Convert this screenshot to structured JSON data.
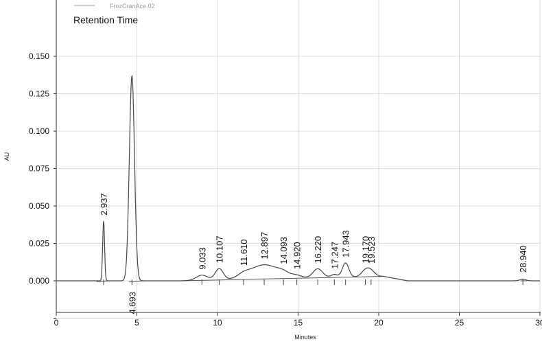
{
  "chart_data": {
    "type": "line",
    "title": "Retention Time",
    "legend_entry": "FrozCranAce.02",
    "legend_position": "top-left",
    "xlabel": "Minutes",
    "ylabel": "AU",
    "xlim": [
      0,
      30
    ],
    "ylim": [
      -0.025,
      0.15
    ],
    "x_ticks": [
      {
        "value": 0,
        "label": "0"
      },
      {
        "value": 5,
        "label": "5"
      },
      {
        "value": 10,
        "label": "10"
      },
      {
        "value": 15,
        "label": "15"
      },
      {
        "value": 20,
        "label": "20"
      },
      {
        "value": 25,
        "label": "25"
      },
      {
        "value": 30,
        "label": "30"
      }
    ],
    "y_ticks": [
      {
        "value": 0.15,
        "label": "0.150"
      },
      {
        "value": 0.125,
        "label": "0.125"
      },
      {
        "value": 0.1,
        "label": "0.100"
      },
      {
        "value": 0.075,
        "label": "0.075"
      },
      {
        "value": 0.05,
        "label": "0.050"
      },
      {
        "value": 0.025,
        "label": "0.025"
      },
      {
        "value": 0.0,
        "label": "0.000"
      },
      {
        "value": -0.025,
        "label": ""
      }
    ],
    "grid": true,
    "peaks": [
      {
        "label": "2.937",
        "rt": 2.937,
        "height": 0.04,
        "width": 0.06
      },
      {
        "label": "4.693",
        "rt": 4.693,
        "height": 0.137,
        "width": 0.16
      },
      {
        "label": "9.033",
        "rt": 9.033,
        "height": 0.0035,
        "width": 0.35
      },
      {
        "label": "10.107",
        "rt": 10.107,
        "height": 0.0075,
        "width": 0.25
      },
      {
        "label": "11.610",
        "rt": 11.61,
        "height": 0.002,
        "width": 0.35
      },
      {
        "label": "12.897",
        "rt": 12.897,
        "height": 0.0095,
        "width": 0.9
      },
      {
        "label": "14.093",
        "rt": 14.093,
        "height": 0.002,
        "width": 0.35
      },
      {
        "label": "14.920",
        "rt": 14.92,
        "height": 0.0015,
        "width": 0.3
      },
      {
        "label": "16.220",
        "rt": 16.22,
        "height": 0.006,
        "width": 0.3
      },
      {
        "label": "17.247",
        "rt": 17.247,
        "height": 0.002,
        "width": 0.2
      },
      {
        "label": "17.943",
        "rt": 17.943,
        "height": 0.0095,
        "width": 0.2
      },
      {
        "label": "19.170",
        "rt": 19.17,
        "height": 0.004,
        "width": 0.25
      },
      {
        "label": "19.523",
        "rt": 19.523,
        "height": 0.0035,
        "width": 0.25
      },
      {
        "label": "28.940",
        "rt": 28.94,
        "height": 0.001,
        "width": 0.2
      }
    ],
    "baseline_segments": [
      {
        "x1": 2.5,
        "y1": -0.0005,
        "x2": 3.3,
        "y2": 0.0
      },
      {
        "x1": 4.5,
        "y1": -0.0005,
        "x2": 5.5,
        "y2": 0.0
      },
      {
        "x1": 7.7,
        "y1": 0.0,
        "x2": 20.3,
        "y2": 0.003
      },
      {
        "x1": 28.8,
        "y1": 0.0,
        "x2": 29.2,
        "y2": 0.0
      }
    ],
    "colors": {
      "trace": "#444444",
      "grid": "#dcdcdc",
      "baseline": "#555555",
      "marker": "#444444"
    }
  }
}
